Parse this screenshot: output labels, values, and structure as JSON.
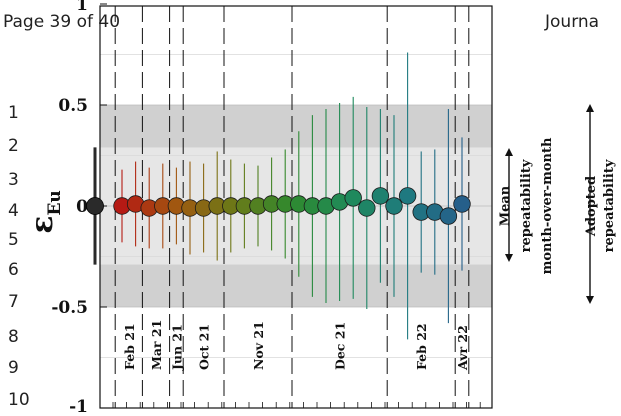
{
  "page_header": {
    "page": "Page 39 of 40",
    "journal": "Journa"
  },
  "line_numbers": [
    "1",
    "2",
    "3",
    "4",
    "5",
    "6",
    "7",
    "8",
    "9",
    "10"
  ],
  "colors": {
    "outer_band": "#d0d0d0",
    "inner_band": "#e6e6e6",
    "reference_point": "#2a2a2a",
    "series_gradient": [
      "#b51a14",
      "#a05a10",
      "#6a7a18",
      "#2f8a2f",
      "#1f8a5a",
      "#1f7a80",
      "#255f8a"
    ]
  },
  "chart_data": {
    "type": "scatter",
    "title": "",
    "xlabel": "",
    "ylabel": "ε",
    "ylabel_subscript": "Eu",
    "ylim": [
      -1,
      1
    ],
    "yticks": [
      -1,
      -0.5,
      0,
      0.5,
      1
    ],
    "ytick_labels": [
      "-1",
      "-0.5",
      "0",
      "0.5",
      "1"
    ],
    "bands": [
      {
        "name": "month-over-month repeatability",
        "from": -0.5,
        "to": 0.5
      },
      {
        "name": "Adopted repeatability",
        "from": -0.29,
        "to": 0.29
      }
    ],
    "right_labels": {
      "mean_lines": [
        "Mean",
        "repeatability",
        "month-over-month"
      ],
      "adopted_lines": [
        "Adopted",
        "repeatability"
      ]
    },
    "reference": {
      "value": 0,
      "error": 0.29
    },
    "months": [
      {
        "label": "Feb 21",
        "start": 0,
        "end": 2
      },
      {
        "label": "Mar 21",
        "start": 2,
        "end": 4
      },
      {
        "label": "Jun 21",
        "start": 4,
        "end": 5
      },
      {
        "label": "Oct 21",
        "start": 5,
        "end": 8
      },
      {
        "label": "Nov 21",
        "start": 8,
        "end": 13
      },
      {
        "label": "Dec 21",
        "start": 13,
        "end": 20
      },
      {
        "label": "Feb 22",
        "start": 20,
        "end": 25
      },
      {
        "label": "Avr 22",
        "start": 25,
        "end": 26
      }
    ],
    "series": [
      {
        "values": [
          0.0,
          0.01,
          -0.01,
          0.0,
          0.0,
          -0.01,
          -0.01,
          0.0,
          0.0,
          0.0,
          0.0,
          0.01,
          0.01,
          0.01,
          0.0,
          0.0,
          0.02,
          0.04,
          -0.01,
          0.05,
          0.0,
          0.05,
          -0.03,
          -0.03,
          -0.05,
          0.01
        ],
        "errors": [
          0.18,
          0.21,
          0.2,
          0.21,
          0.19,
          0.23,
          0.22,
          0.27,
          0.23,
          0.21,
          0.2,
          0.23,
          0.27,
          0.36,
          0.45,
          0.48,
          0.49,
          0.5,
          0.5,
          0.43,
          0.45,
          0.71,
          0.3,
          0.31,
          0.53,
          0.33
        ]
      }
    ]
  }
}
